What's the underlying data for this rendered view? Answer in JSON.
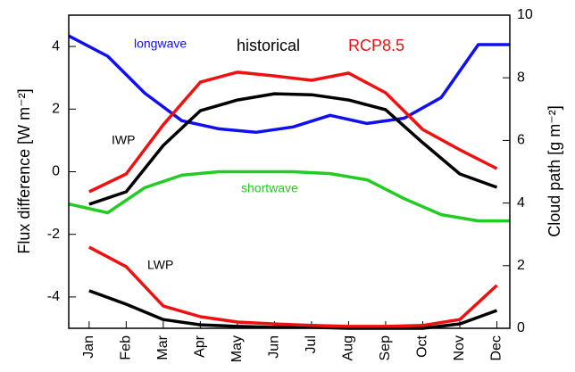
{
  "chart_data": {
    "type": "line",
    "y_label": "Flux difference [W m⁻²]",
    "y2_label": "Cloud path [g m⁻²]",
    "categories": [
      "Jan",
      "Feb",
      "Mar",
      "Apr",
      "May",
      "Jun",
      "Jul",
      "Aug",
      "Sep",
      "Oct",
      "Nov",
      "Dec"
    ],
    "xlim": [
      0.45,
      12.35
    ],
    "ylim": [
      -5,
      5
    ],
    "yticks": [
      -4,
      -2,
      0,
      2,
      4
    ],
    "y2lim": [
      0,
      10
    ],
    "y2ticks": [
      0,
      2,
      4,
      6,
      8,
      10
    ],
    "annotations": [
      "IWP",
      "LWP"
    ],
    "series": [
      {
        "name": "longwave",
        "color": "#1010ee",
        "x": [
          0.45,
          1.5,
          2.5,
          3.5,
          4.5,
          5.5,
          6.5,
          7.5,
          8.5,
          9.5,
          10.5,
          11.5,
          12.35
        ],
        "values": [
          4.34,
          3.69,
          2.51,
          1.63,
          1.37,
          1.26,
          1.43,
          1.8,
          1.54,
          1.71,
          2.37,
          4.06,
          4.06
        ]
      },
      {
        "name": "shortwave",
        "color": "#22cc22",
        "x": [
          0.45,
          1.5,
          2.5,
          3.5,
          4.5,
          5.5,
          6.5,
          7.5,
          8.5,
          9.5,
          10.5,
          11.5,
          12.35
        ],
        "values": [
          -1.03,
          -1.31,
          -0.51,
          -0.11,
          0,
          0,
          0,
          -0.06,
          -0.26,
          -0.86,
          -1.37,
          -1.57,
          -1.57
        ]
      }
    ],
    "cloud_series": [
      {
        "name": "historical",
        "color": "#000000",
        "axis": "y2",
        "x": [
          1,
          2,
          3,
          4,
          5,
          6,
          7,
          8,
          9,
          10,
          11,
          12
        ],
        "IWP": [
          3.96,
          4.36,
          5.84,
          6.95,
          7.29,
          7.49,
          7.46,
          7.29,
          6.98,
          5.93,
          4.93,
          4.5
        ],
        "LWP": [
          1.2,
          0.77,
          0.28,
          0.11,
          0.06,
          0.03,
          0.03,
          0,
          0,
          0,
          0.14,
          0.57
        ]
      },
      {
        "name": "RCP8.5",
        "color": "#ee1111",
        "axis": "y2",
        "x": [
          1,
          2,
          3,
          4,
          5,
          6,
          7,
          8,
          9,
          10,
          11,
          12
        ],
        "IWP": [
          4.36,
          4.93,
          6.5,
          7.86,
          8.18,
          8.06,
          7.92,
          8.15,
          7.52,
          6.35,
          5.7,
          5.1
        ],
        "LWP": [
          2.59,
          1.97,
          0.71,
          0.37,
          0.2,
          0.14,
          0.09,
          0.06,
          0.06,
          0.09,
          0.28,
          1.37
        ]
      }
    ]
  }
}
